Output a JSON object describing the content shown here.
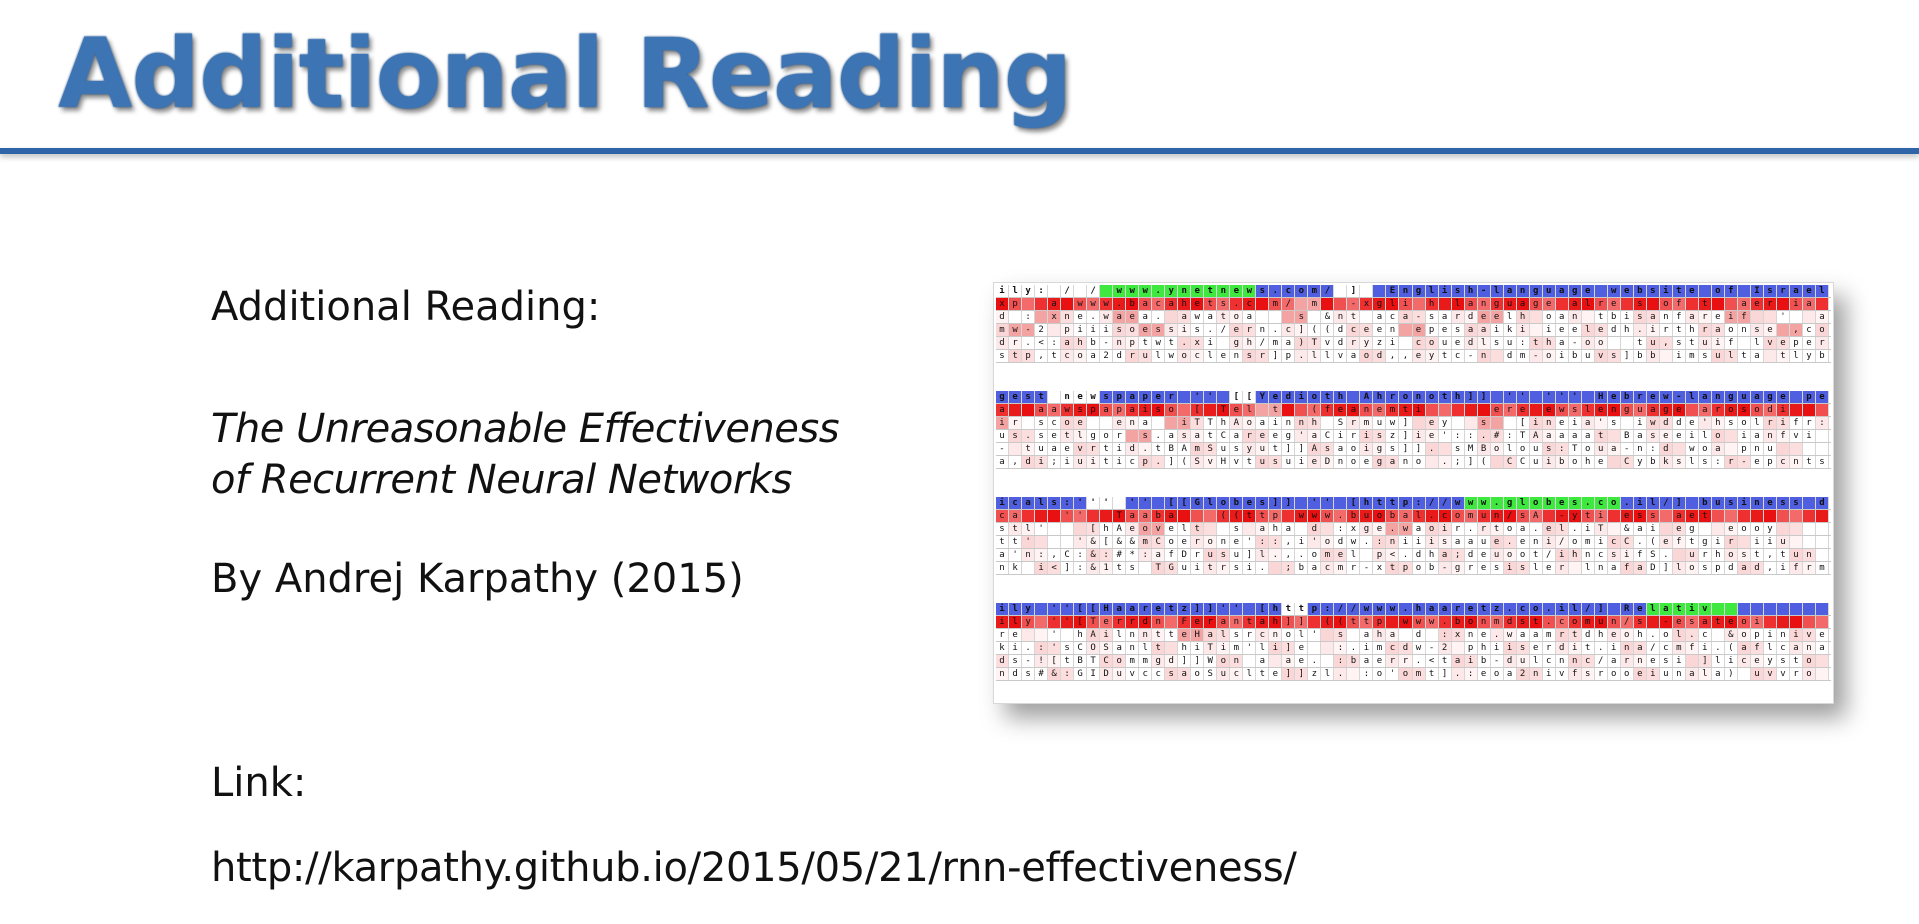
{
  "slide": {
    "title": "Additional Reading",
    "reading_label": "Additional Reading:",
    "article_title_line1": "The Unreasonable Effectiveness",
    "article_title_line2": "of Recurrent Neural Networks",
    "author_line": "By Andrej Karpathy (2015)",
    "link_label": "Link:",
    "link_url": "http://karpathy.github.io/2015/05/21/rnn-effectiveness/"
  },
  "colors": {
    "title": "#3d75b4",
    "rule": "#2f64a8",
    "text": "#111111",
    "cell_blue": "#4f5fe0",
    "cell_green": "#3ee83e",
    "cell_red": "#e81010"
  },
  "figure": {
    "description_icon": "rnn-character-activation-grid",
    "blocks": [
      {
        "rows": [
          "ily: / / www.ynetnews.com/ ]  English-language website of Israel's lar",
          "xp  a www.bacahets.c m/ m  -xgli h language alre s of t  aer ia  sin",
          "d : xne.waea. awatoa   s &nt aca-sardeelh oan tbisanfareif  '  aatd",
          "mw-2 piiisoessis./ern.c]((dceen epesaaiki ieeledh.irthraonse ,cose",
          "dr.<:ahb-nptwt.xi gh/ma)Tvdryzi couedlsu:tha-oo  tu,stuif lveperyy",
          "stp,tcoa2drulwoclensr]p.llvaod,,eytc-n dm-oibuvs]bb imsulta tlybn"
        ],
        "shading": "ccccccccggggggggggggbbbbbbwwwbbbbbbbbbbbbbbbbbbbbbbbbbbbbbbbbbbbbbbbbbbbbbbb|rrrrrrrrrrrrrrrrrrrrrrrpprrrrrrrrrrrrrrrrrrrrrrrrrrrrrrrrrrrrrrrrrrrrrrrrrrr|wwwppwwwwppwwwwwwwwwwwppwwwwwwwwwwwwwppwwwwwwwwwwwwwwwwwppwwwwwwwwwwwwwwww|wppwwwwwwwwppwwwwwwwwwwwwwwwwwwppwwwwwwwwwwwwwwwwwwwwwwwwwwwppwwwwwwwwwwww|wwwwwwwwwwwwwwwwwwwwwwwwwwwwwwwwwwwwwwwwwwwwwwwwwwwwwwwwwwwwwwwwwwwwwwwwww|wwwwwwwwwwwwwwwwwwwwwwwwwwwwwwwwwwwwwwwwwwwwwwwwwwwwwwwwwwwwwwwwwwwwwwwwww"
      },
      {
        "rows": [
          "gest newspaper '' [[Yedioth Ahronoth]] '' ''' Hebrew-language period",
          "a  aawspapaiso [ Tel t  (feanemti     ere ewslenguage arosodi",
          "ir scoe  ena  iTThAoainnh Srmuw] ey  s  [ineia's iwdde'hsolrifr:",
          "us.setlgor s.asatCareeg'aCirisz]ie'::.#:TAaaaat Baseeilo ianfvi",
          "- tuaevrtid.tBAmSusyut]]Asaoigs]]. sMBolous:Toua-n:d woa pnu",
          "a,di;iuiticp.](SvHvtusuieDnoegano .;]( CCuibohe Cybksls:r-epcnts"
        ],
        "shading": "bbbbwwwwbbbbbbbbbbwwbbbbbbbbbbbbbbbbbbbbbbbbbbbbbbbbbbbbbbbbbbbbbbbbbbbbbbb|rrrrrrrrrrrrrrrrrrrrpprrrrrrrrrrrrrrrrrrrrrrrrrrrrrrrrrrrrrrrrrrrrrrrrrrrrr|pwwwwwwwwwwwwppwwwwwwwwwwwwwwwwwwwwwwppwwwwwwwwwwwwwwwwwwwwwwwwwwwwwwwwwwww|wwwwwwwwwwppwwwwwwwwwwwwwwwwwwwwwwwwwwwwwwwwwwwwwwwwwwwwwwwwwwwwwwwwwwwwwww|wwwwwwwwwwwwwwwwwwwwwwwwwwwwwwwwwwwwwwwwwwwwwwwwwwwwwwwwwwwwwwwwwwwwwwwwwww|wwwwwwwwwwwwwwwwwwwwwwwwwwwwwwwwwwwwwwwwwwwwwwwwwwwwwwwwwwwwwwwwwwwwwwwwwww"
      },
      {
        "rows": [
          "icals:''' '' [[Globes]] '' [http://www.globes.co.il/] business da",
          "ca   ''  Taaba   ((ttp www.buobal.comun/sA -yti ess aet",
          "stl'   [hAeovelt  s aha d :xge.waoir.rtoa.el.iT &ai eg  eooy",
          "tt'   '&[&&mCoerone'::,i'odw.:niiisaaue.eni/omicC.(eftgir iiu",
          "a'n:,C:&:#*:afDrusu]l.,.omel p<.dha;deuoot/ihncsifS. urhost,tun",
          "nk i<]:&1ts TGuitrsi. ;bacmr-xtpob-gresisler lnafaD]lospdad,ifrm"
        ],
        "shading": "bbbbbbbwwwbbbbbbbbbbbbbbbbbbbbbbbbbbggggggggggggbbbbbbbbbbbbbbbbbbbbbbbbbbbbbbbb|rrrrrrrrrrrrrrrrrrrrrrrrrrrrrrrrrrrrrrrrrrrrrrrrrrrrrrrrrrrrrrrrrrrrrrrrrrrr|wwwwwwwwwwwppwwwwwwwwwwwwwwwwwppwwwwwwwwwwwwwwwwwwwwwwwwwwwwwwwwwwwwwwwwwww|wwwwwwwwwwwwwwwwwwwwwwwwwwwwwwwwwwwwwwwwwwwwwwwwwwwwwwwwwwwwwwwwwwwwwwwwwwww|wwwwwwwwwwwwwwwwwwwwwwwwwwwwwwwwwwwwwwwwwwwwwwwwwwwwwwwwwwwwwwwwwwwwwwwwwwww|wwwwwwwwwwwwwwwwwwwwwwwwwwwwwwwwwwwwwwwwwwwwwwwwwwwwwwwwwwwwwwwwwwwwwwwwwwww"
      },
      {
        "rows": [
          "ily ''[[Haaretz]]'' [http://www.haaretz.co.il/] Relativ",
          "ily ''[Terrdn Ferantah]] ((ttp www.bonmdst.comun/s -esateoi",
          "re  ' hAilnntteHalsrcnol' s aha d :xne.waamrtdheoh.ol.c &opinive",
          "ki.:'sCOSanlt hiTim'li]e  :.imcdw-2 phiiserdit.ina/cmfi.(aflcana",
          "ds-![tBTCommgd]]Won a ae. :baerr.<taib-dulcnnc/arnesi ]liceysto",
          "nds#&:GIDuvccsaoSuclte]]zl. :o'omt].:eoa2nivfsrooeiunala) uvvro"
        ],
        "shading": "bbbbbbbbbbbbbbbbbbbbbbwwbbbbbbbbbbbbbbbbbbbbbbbbbbgggggggbbbbbbbbbbbbbbbbbbbbbbbb|rrrrrrrrrrrrrrrrrrrrrrrrrrrrrrrrrrrrrrrrrrrrrrrrrrrrrrrrrrrrrrrrrrrrrrrrrrrrr|wwwwwwwwwwwwwwppwwwwwwwwwwwwwwwwwwwwwwwwwwwwwwwwwwwwwwwwwwwwwwwwwwwwwwwwwwww|wwwwwwwwwwwwwwwwwwwwwwwwwwwwwwwwwwwwwwwwwwwwwwwwwwwwwwwwwwwwwwwwwwwwwwwwwwwww|wwwwwwwwwwwwwwwwwwwwwwwwwwwwwwwwwwwwwwwwwwwwwwwwwwwwwwwwwwwwwwwwwwwwwwwwwwwww|wwwwwwwwwwwwwwwwwwwwwwwwwwwwwwwwwwwwwwwwwwwwwwwwwwwwwwwwwwwwwwwwwwwwwwwwwwwww"
      }
    ]
  }
}
